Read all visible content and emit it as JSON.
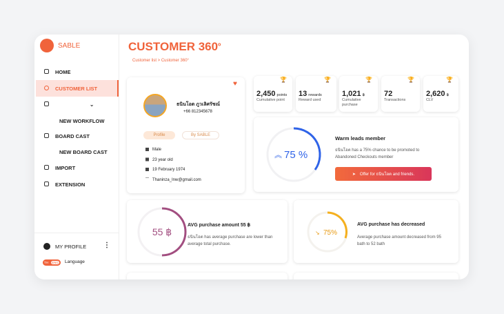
{
  "sidebar": {
    "brand": "SABLE",
    "menu": [
      "HOME",
      "CUSTOMER LIST",
      "NEW WORKFLOW",
      "BOARD CAST",
      "NEW BOARD CAST",
      "IMPORT",
      "EXTENSION"
    ],
    "profile": "MY PROFILE",
    "toggle": [
      "TH",
      "ENG"
    ],
    "language": "Language"
  },
  "header": {
    "title": "CUSTOMER 360",
    "title_sup": "o",
    "breadcrumb": "Customer list > Customer 360°"
  },
  "profile_card": {
    "name": "ธนินโอต ภูวเลิศรัชณ์",
    "phone": "+66 812345678",
    "tabs": [
      "Profile",
      "By SABLE"
    ],
    "details": [
      "Male",
      "23 year old",
      "19 February 1974",
      "Thaninza_Inw@gmail.com"
    ]
  },
  "stats": [
    {
      "value": "2,450",
      "unit": "points",
      "label": "Cumulative point"
    },
    {
      "value": "13",
      "unit": "rewards",
      "label": "Reward used"
    },
    {
      "value": "1,021",
      "unit": "฿",
      "label": "Cumulative purchase"
    },
    {
      "value": "72",
      "label": "Transactions"
    },
    {
      "value": "2,620",
      "unit": "฿",
      "label": "CLV"
    }
  ],
  "lead_card": {
    "gauge": "75 %",
    "title": "Warm leads member",
    "description": "ธนินโอต has a 75% chance to be promoted to Abandoned Checkouts member",
    "button": "Offer for  ธนินโอต and friends."
  },
  "avg_amount_card": {
    "gauge": "55 ฿",
    "title": "AVG purchase amount 55 ฿",
    "description": "ธนินโอต has average purchase are lower than average total purchase."
  },
  "avg_decrease_card": {
    "gauge": "75%",
    "title": "AVG purchase has decreased",
    "description": "Average purchase amount decreased from 95 bath to 52 bath"
  }
}
